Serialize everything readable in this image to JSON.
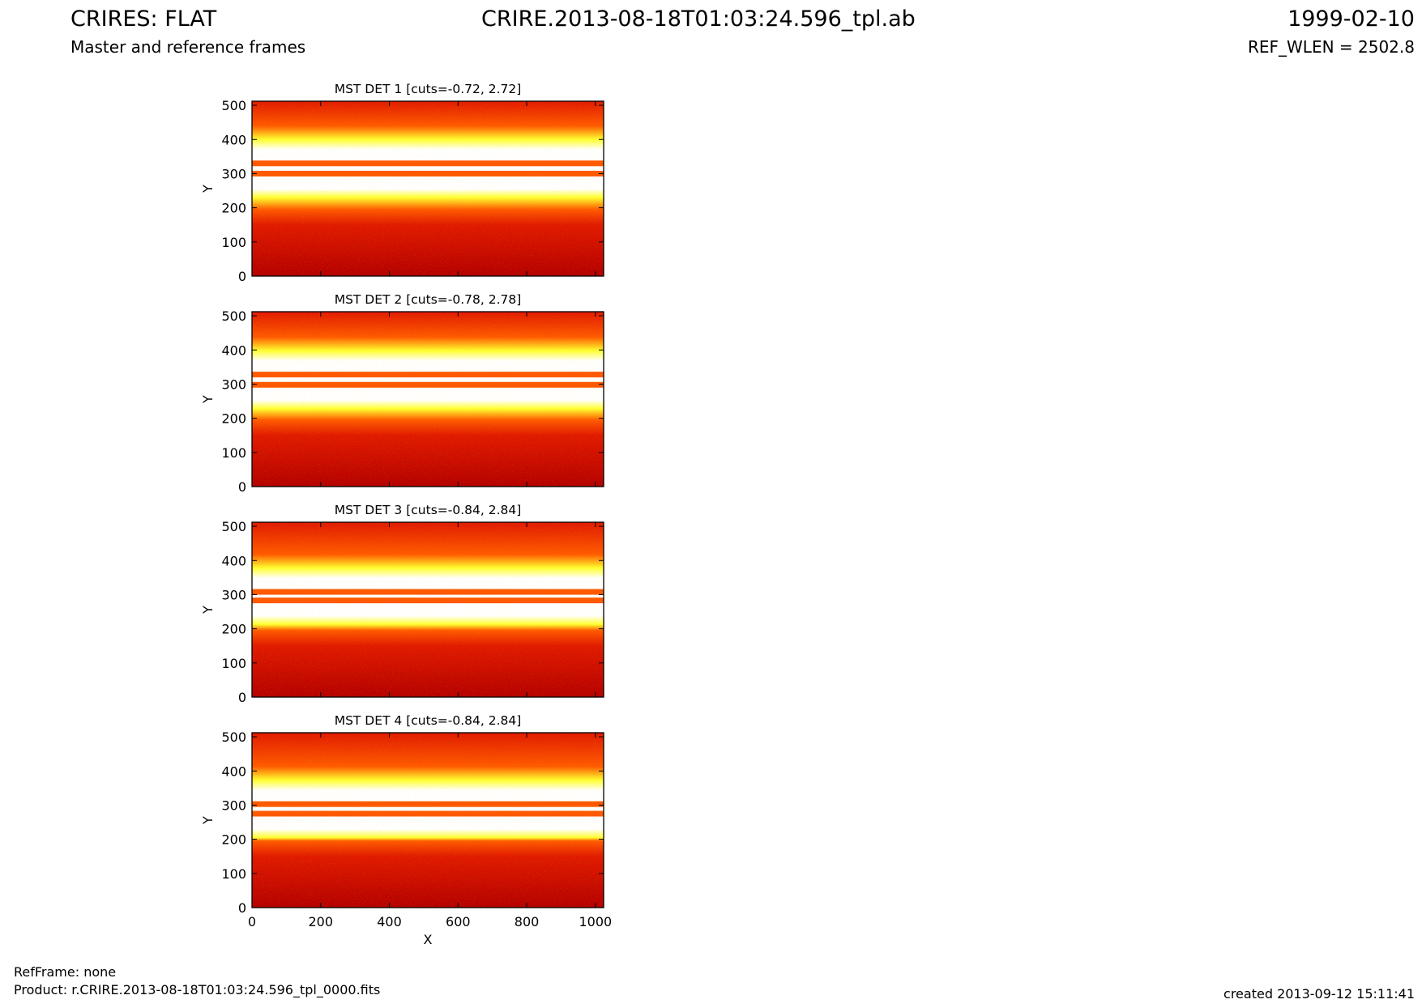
{
  "header": {
    "title_left": "CRIRES: FLAT",
    "title_center": "CRIRE.2013-08-18T01:03:24.596_tpl.ab",
    "title_right": "1999-02-10",
    "subtitle_left": "Master and reference frames",
    "subtitle_right": "REF_WLEN = 2502.8"
  },
  "footer": {
    "refframe": "RefFrame: none",
    "product": "Product: r.CRIRE.2013-08-18T01:03:24.596_tpl_0000.fits",
    "created": "created 2013-09-12 15:11:41"
  },
  "colors": {
    "dark_red": "#b40000",
    "red": "#e01a00",
    "orange": "#ff5a00",
    "yellow": "#ffff30",
    "white": "#ffffff"
  },
  "chart_data": [
    {
      "type": "heatmap",
      "title": "MST DET 1 [cuts=-0.72, 2.72]",
      "xlabel": "",
      "ylabel": "Y",
      "xlim": [
        0,
        1024
      ],
      "ylim": [
        0,
        512
      ],
      "xticks": [],
      "yticks": [
        0,
        100,
        200,
        300,
        400,
        500
      ],
      "cuts": [
        -0.72,
        2.72
      ],
      "orange_lines_y": [
        300,
        330
      ]
    },
    {
      "type": "heatmap",
      "title": "MST DET 2 [cuts=-0.78, 2.78]",
      "xlabel": "",
      "ylabel": "Y",
      "xlim": [
        0,
        1024
      ],
      "ylim": [
        0,
        512
      ],
      "xticks": [],
      "yticks": [
        0,
        100,
        200,
        300,
        400,
        500
      ],
      "cuts": [
        -0.78,
        2.78
      ],
      "orange_lines_y": [
        298,
        328
      ]
    },
    {
      "type": "heatmap",
      "title": "MST DET 3 [cuts=-0.84, 2.84]",
      "xlabel": "",
      "ylabel": "Y",
      "xlim": [
        0,
        1024
      ],
      "ylim": [
        0,
        512
      ],
      "xticks": [],
      "yticks": [
        0,
        100,
        200,
        300,
        400,
        500
      ],
      "cuts": [
        -0.84,
        2.84
      ],
      "orange_lines_y": [
        283,
        308
      ]
    },
    {
      "type": "heatmap",
      "title": "MST DET 4 [cuts=-0.84, 2.84]",
      "xlabel": "X",
      "ylabel": "Y",
      "xlim": [
        0,
        1024
      ],
      "ylim": [
        0,
        512
      ],
      "xticks": [
        0,
        200,
        400,
        600,
        800,
        1000
      ],
      "yticks": [
        0,
        100,
        200,
        300,
        400,
        500
      ],
      "cuts": [
        -0.84,
        2.84
      ],
      "orange_lines_y": [
        275,
        303
      ]
    }
  ]
}
